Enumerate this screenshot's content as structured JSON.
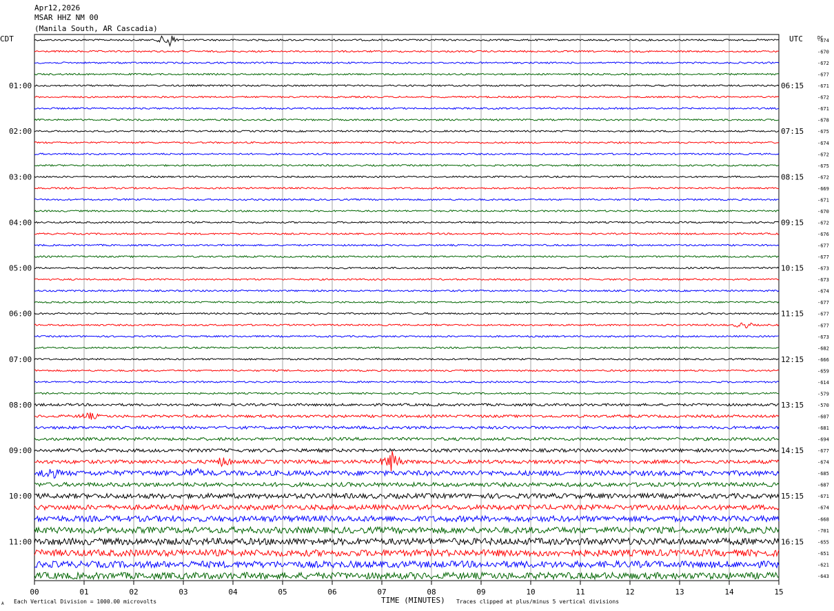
{
  "header": {
    "date": "Apr12,2026",
    "station": "MSAR HHZ NM 00",
    "location": "(Manila South, AR Cascadia)"
  },
  "labels": {
    "left_zone": "CDT",
    "right_zone": "UTC",
    "dc_header": "DC",
    "xlabel": "TIME (MINUTES)",
    "scale_note": "Each Vertical Division = 1000.00 microvolts",
    "clip_note": "Traces clipped at plus/minus 5 vertical divisions",
    "corner_mark": "A"
  },
  "colors": [
    "#000000",
    "#ff0000",
    "#0000ff",
    "#006400"
  ],
  "chart_data": {
    "type": "line",
    "title": "MSAR HHZ NM 00",
    "xlabel": "TIME (MINUTES)",
    "xlim": [
      0,
      15
    ],
    "x_ticks": [
      "00",
      "01",
      "02",
      "03",
      "04",
      "05",
      "06",
      "07",
      "08",
      "09",
      "10",
      "11",
      "12",
      "13",
      "14",
      "15"
    ],
    "left_time_labels": [
      "01:00",
      "02:00",
      "03:00",
      "04:00",
      "05:00",
      "06:00",
      "07:00",
      "08:00",
      "09:00",
      "10:00",
      "11:00"
    ],
    "right_time_labels": [
      "06:15",
      "07:15",
      "08:15",
      "09:15",
      "10:15",
      "11:15",
      "12:15",
      "13:15",
      "14:15",
      "15:15",
      "16:15"
    ],
    "dc_offsets": [
      -674,
      -670,
      -672,
      -677,
      -671,
      -672,
      -671,
      -678,
      -675,
      -674,
      -672,
      -675,
      -672,
      -669,
      -671,
      -670,
      -672,
      -676,
      -677,
      -677,
      -673,
      -673,
      -674,
      -677,
      -677,
      -677,
      -673,
      -682,
      -666,
      -659,
      -614,
      -579,
      -570,
      -607,
      -681,
      -694,
      -677,
      -674,
      -685,
      -687,
      -671,
      -674,
      -668,
      -701,
      -655,
      -651,
      -621,
      -643
    ],
    "trace_amplitude": [
      1,
      1,
      1,
      1,
      1,
      1,
      1,
      1,
      1,
      1,
      1,
      1,
      1,
      1,
      1,
      1,
      1,
      1,
      1,
      1,
      1,
      1,
      1,
      1,
      1,
      1,
      1,
      1,
      1,
      1,
      1,
      1,
      1.5,
      1.6,
      1.7,
      1.8,
      2,
      2.2,
      3,
      2.5,
      3,
      3,
      3.5,
      3.8,
      4,
      4,
      4,
      4
    ],
    "events": [
      {
        "trace": 0,
        "minute": 2.7,
        "amplitude": 10
      },
      {
        "trace": 33,
        "minute": 1.1,
        "amplitude": 4
      },
      {
        "trace": 37,
        "minute": 3.8,
        "amplitude": 5
      },
      {
        "trace": 37,
        "minute": 7.2,
        "amplitude": 14
      },
      {
        "trace": 38,
        "minute": 0.3,
        "amplitude": 6
      },
      {
        "trace": 38,
        "minute": 3.2,
        "amplitude": 5
      },
      {
        "trace": 25,
        "minute": 14.3,
        "amplitude": 4
      }
    ]
  }
}
